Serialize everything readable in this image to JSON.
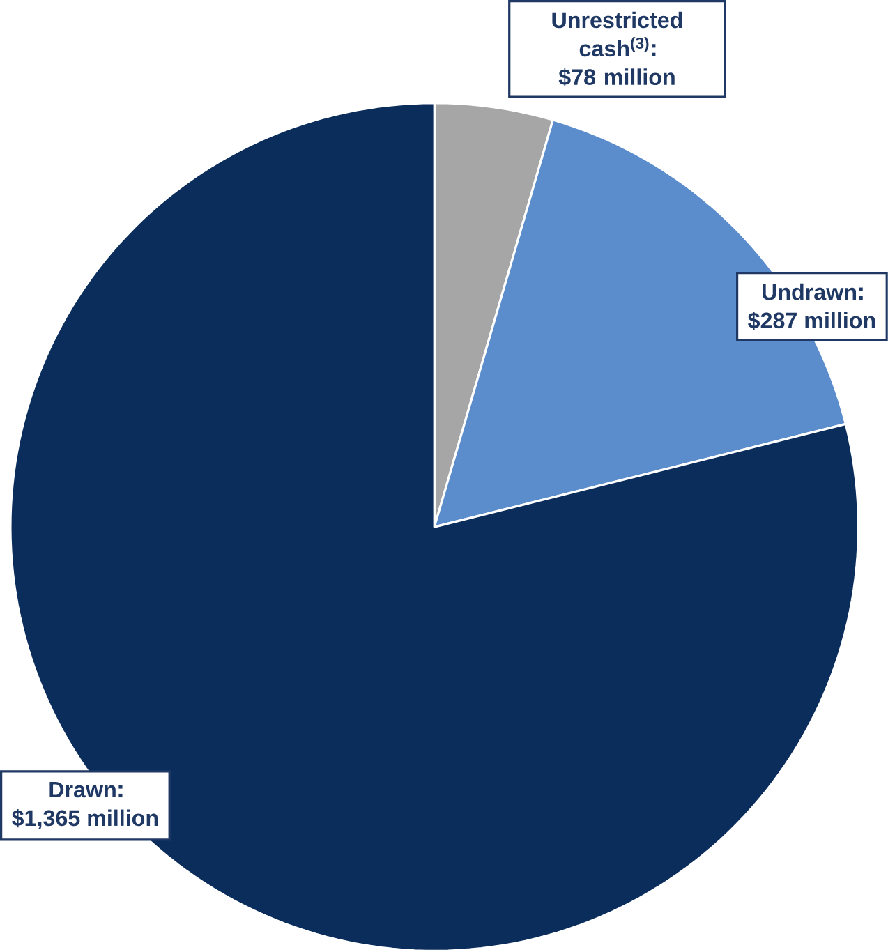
{
  "chart_data": {
    "type": "pie",
    "categories": [
      "Unrestricted cash$^{(3)}$",
      "Undrawn",
      "Drawn"
    ],
    "values": [
      78,
      287,
      1365
    ],
    "colors": [
      "#a6a6a6",
      "#5b8ccc",
      "#0b2d5c"
    ],
    "value_labels": [
      "$78 million",
      "$287 million",
      "$1,365 million"
    ]
  }
}
